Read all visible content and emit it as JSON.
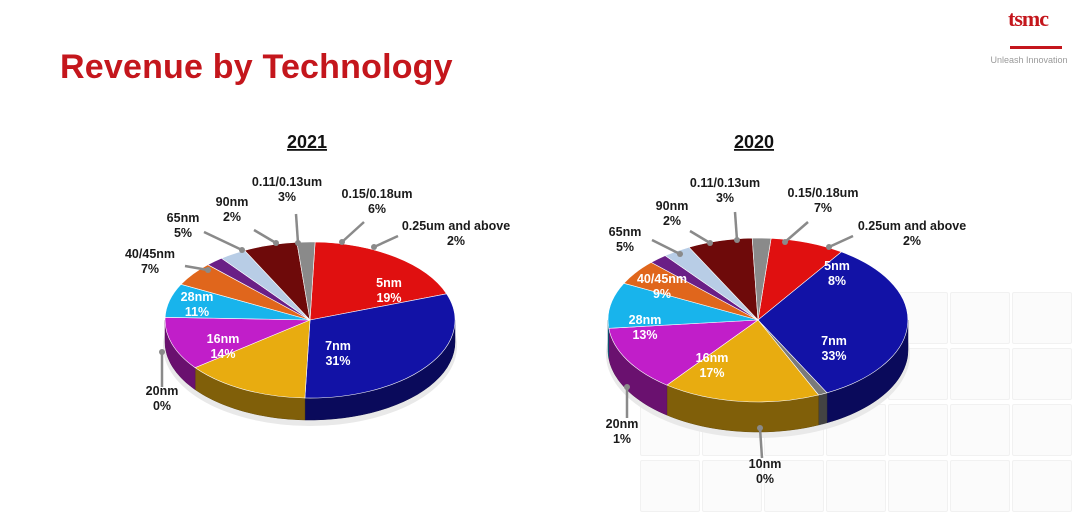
{
  "title": "Revenue by Technology",
  "logo": {
    "text": "tsmc",
    "tagline": "Unleash Innovation"
  },
  "chart_data": [
    {
      "type": "pie",
      "title": "2021",
      "unit": "%",
      "slices": [
        {
          "label": "5nm",
          "value": 19,
          "value_label": "19%",
          "color": "#e01010"
        },
        {
          "label": "7nm",
          "value": 31,
          "value_label": "31%",
          "color": "#1212a6"
        },
        {
          "label": "20nm",
          "value": 0,
          "value_label": "0%",
          "color": "#7a7a7a"
        },
        {
          "label": "16nm",
          "value": 14,
          "value_label": "14%",
          "color": "#e8ac10"
        },
        {
          "label": "28nm",
          "value": 11,
          "value_label": "11%",
          "color": "#c11ec9"
        },
        {
          "label": "40/45nm",
          "value": 7,
          "value_label": "7%",
          "color": "#18b4ec"
        },
        {
          "label": "65nm",
          "value": 5,
          "value_label": "5%",
          "color": "#e0661c"
        },
        {
          "label": "90nm",
          "value": 2,
          "value_label": "2%",
          "color": "#6a1f86"
        },
        {
          "label": "0.11/0.13um",
          "value": 3,
          "value_label": "3%",
          "color": "#b8cde6"
        },
        {
          "label": "0.15/0.18um",
          "value": 6,
          "value_label": "6%",
          "color": "#6e0a0a"
        },
        {
          "label": "0.25um and above",
          "value": 2,
          "value_label": "2%",
          "color": "#8a8a8a"
        }
      ]
    },
    {
      "type": "pie",
      "title": "2020",
      "unit": "%",
      "slices": [
        {
          "label": "5nm",
          "value": 8,
          "value_label": "8%",
          "color": "#e01010"
        },
        {
          "label": "7nm",
          "value": 33,
          "value_label": "33%",
          "color": "#1212a6"
        },
        {
          "label": "10nm",
          "value": 0,
          "value_label": "0%",
          "color": "#7a7a7a"
        },
        {
          "label": "20nm",
          "value": 1,
          "value_label": "1%",
          "color": "#7a7a7a"
        },
        {
          "label": "16nm",
          "value": 17,
          "value_label": "17%",
          "color": "#e8ac10"
        },
        {
          "label": "28nm",
          "value": 13,
          "value_label": "13%",
          "color": "#c11ec9"
        },
        {
          "label": "40/45nm",
          "value": 9,
          "value_label": "9%",
          "color": "#18b4ec"
        },
        {
          "label": "65nm",
          "value": 5,
          "value_label": "5%",
          "color": "#e0661c"
        },
        {
          "label": "90nm",
          "value": 2,
          "value_label": "2%",
          "color": "#6a1f86"
        },
        {
          "label": "0.11/0.13um",
          "value": 3,
          "value_label": "3%",
          "color": "#b8cde6"
        },
        {
          "label": "0.15/0.18um",
          "value": 7,
          "value_label": "7%",
          "color": "#6e0a0a"
        },
        {
          "label": "0.25um and above",
          "value": 2,
          "value_label": "2%",
          "color": "#8a8a8a"
        }
      ]
    }
  ]
}
